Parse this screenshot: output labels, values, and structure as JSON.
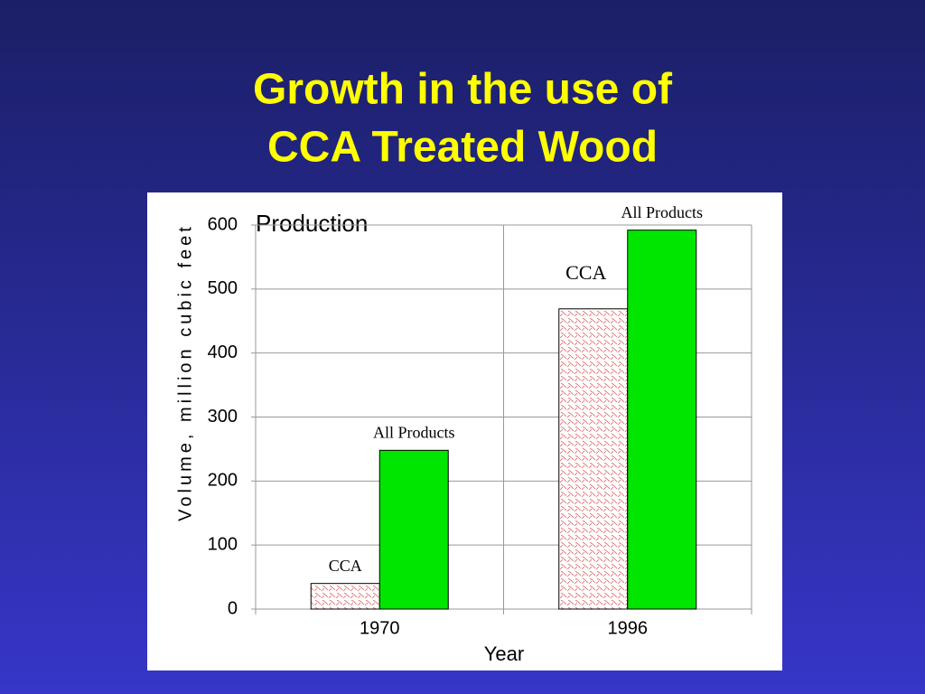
{
  "chart_data": {
    "type": "bar",
    "title": [
      "Growth in the use of",
      "CCA Treated Wood"
    ],
    "annotation": "Production",
    "y_label": "Volume, million cubic feet",
    "x_label": "Year",
    "categories": [
      "1970",
      "1996"
    ],
    "series": [
      {
        "name": "CCA",
        "color": "#e06060",
        "pattern": "hatch",
        "values": [
          40,
          469
        ]
      },
      {
        "name": "All Products",
        "color": "#00e600",
        "values": [
          248,
          592
        ]
      }
    ],
    "ylim": [
      0,
      600
    ],
    "yticks": [
      0,
      100,
      200,
      300,
      400,
      500,
      600
    ],
    "grid": true
  }
}
